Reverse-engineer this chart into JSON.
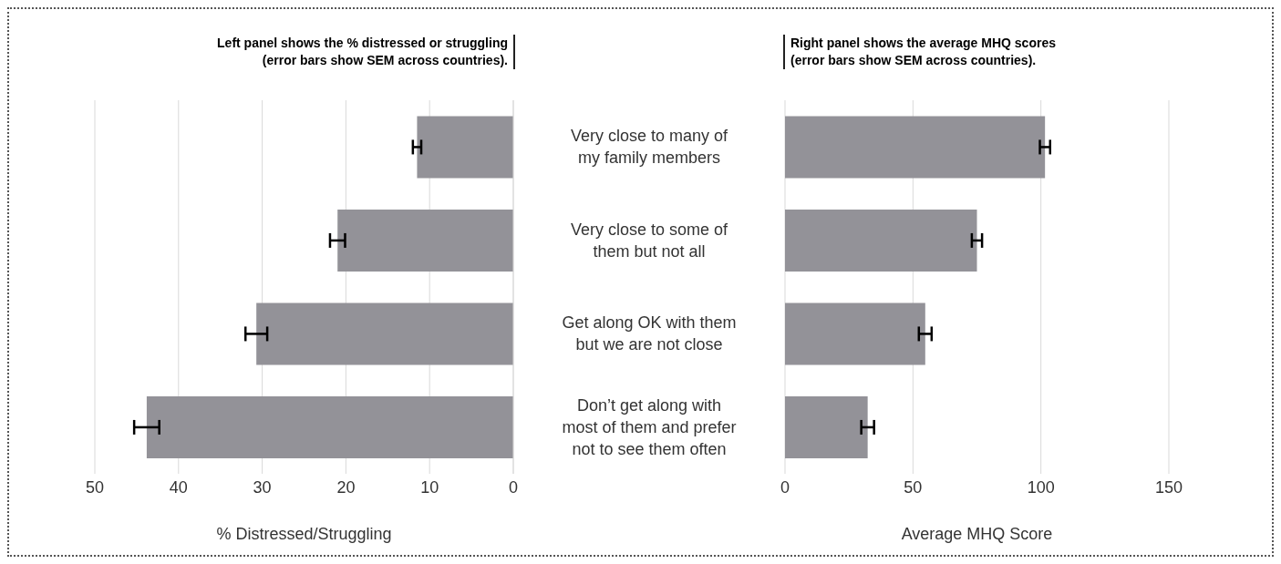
{
  "chart_data": [
    {
      "type": "bar",
      "orientation": "horizontal",
      "subtitle": "Left panel shows the % distressed or struggling (error bars show SEM across countries).",
      "categories": [
        "Very close to many of my family members",
        "Very close to some of them but not all",
        "Get along OK with them but we are not close",
        "Don’t get along with most of them and prefer not to see them often"
      ],
      "values": [
        11.5,
        21.0,
        30.7,
        43.8
      ],
      "errors": [
        0.5,
        0.9,
        1.3,
        1.5
      ],
      "color": "#939298",
      "xlim": [
        50,
        0
      ],
      "xticks": [
        50,
        40,
        30,
        20,
        10,
        0
      ],
      "xlabel": "% Distressed/Struggling",
      "grid": "x"
    },
    {
      "type": "bar",
      "orientation": "horizontal",
      "subtitle": "Right panel shows the average MHQ scores (error bars show SEM across countries).",
      "categories": [
        null,
        null,
        null,
        null
      ],
      "values": [
        101.6,
        75.0,
        54.8,
        32.3
      ],
      "errors": [
        2,
        2,
        2.5,
        2.5
      ],
      "color": "#939298",
      "xlim": [
        0,
        150
      ],
      "xticks": [
        0,
        50,
        100,
        150
      ],
      "xlabel": "Average MHQ Score",
      "grid": "x",
      "tick_labels": "x"
    }
  ]
}
